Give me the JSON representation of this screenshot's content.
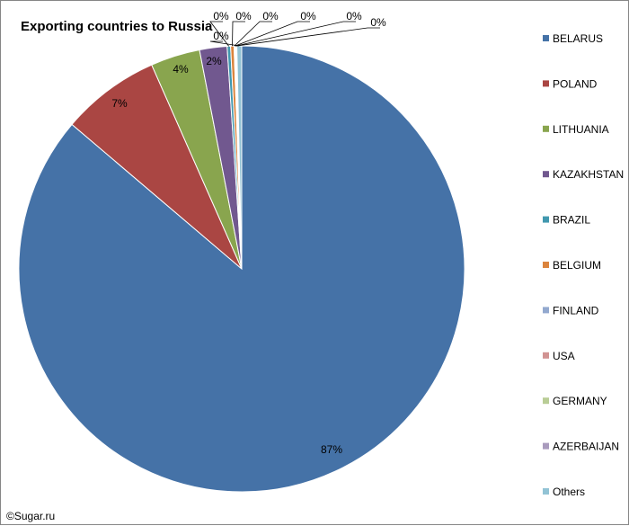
{
  "chart_data": {
    "type": "pie",
    "title": "Exporting countries to Russia",
    "categories": [
      "BELARUS",
      "POLAND",
      "LITHUANIA",
      "KAZAKHSTAN",
      "BRAZIL",
      "BELGIUM",
      "FINLAND",
      "USA",
      "GERMANY",
      "AZERBAIJAN",
      "Others"
    ],
    "values": [
      86.6,
      7.2,
      3.6,
      2.0,
      0.25,
      0.25,
      0.05,
      0.05,
      0.05,
      0.05,
      0.35
    ],
    "data_labels": [
      "87%",
      "7%",
      "4%",
      "2%",
      "0%",
      "0%",
      "0%",
      "0%",
      "0%",
      "0%",
      "0%"
    ],
    "colors": [
      "#4572A7",
      "#AA4643",
      "#89A54E",
      "#71588F",
      "#4198AF",
      "#DB843D",
      "#93A9CF",
      "#D19392",
      "#B9CD96",
      "#A99BBD",
      "#92C3D5"
    ],
    "legend_position": "right"
  },
  "credit": "©Sugar.ru"
}
